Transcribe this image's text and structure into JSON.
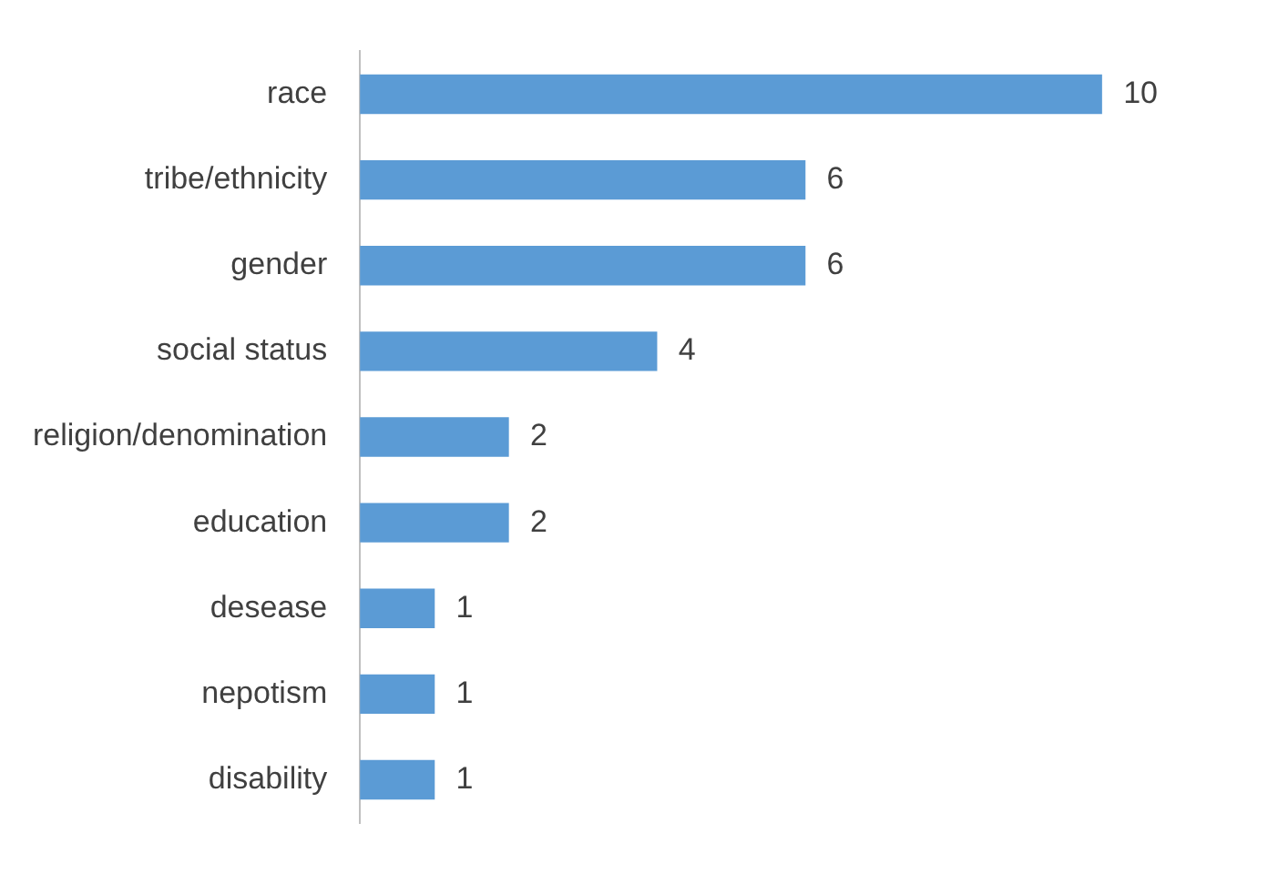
{
  "chart_data": {
    "type": "bar",
    "orientation": "horizontal",
    "categories": [
      "race",
      "tribe/ethnicity",
      "gender",
      "social status",
      "religion/denomination",
      "education",
      "desease",
      "nepotism",
      "disability"
    ],
    "values": [
      10,
      6,
      6,
      4,
      2,
      2,
      1,
      1,
      1
    ],
    "color": "#5b9bd5",
    "data_labels": true,
    "legend": false
  }
}
